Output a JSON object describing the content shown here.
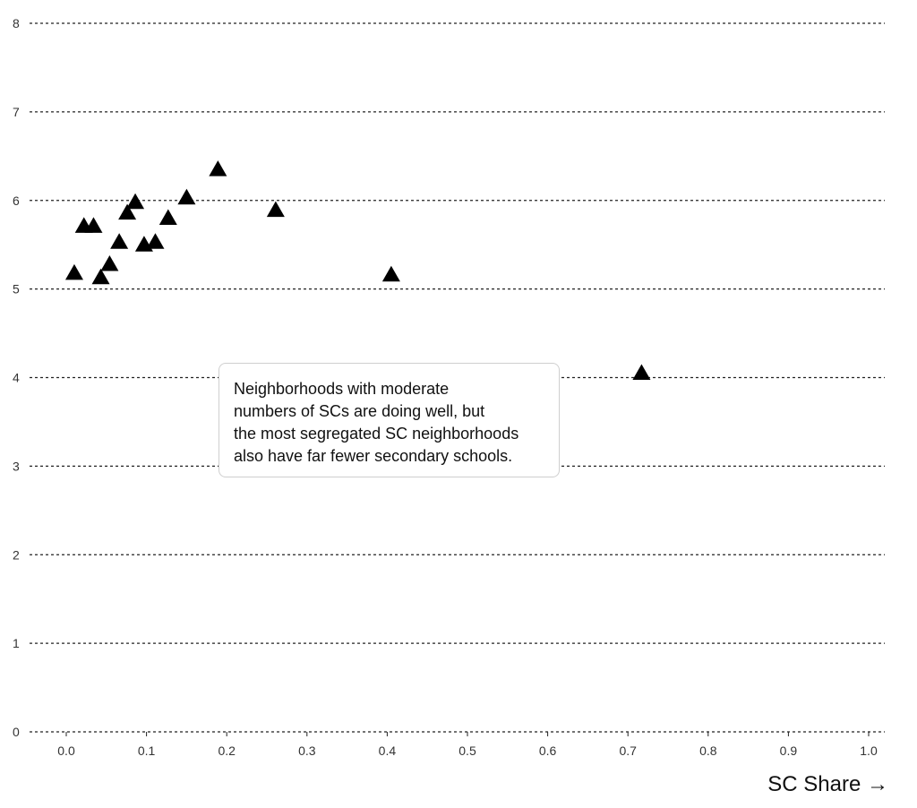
{
  "chart_data": {
    "type": "scatter",
    "title": "",
    "xlabel": "SC Share →",
    "ylabel": "",
    "xlim": [
      0,
      1
    ],
    "ylim": [
      0,
      8
    ],
    "grid": "horizontal dashed",
    "x_ticks": [
      "0.0",
      "0.1",
      "0.2",
      "0.3",
      "0.4",
      "0.5",
      "0.6",
      "0.7",
      "0.8",
      "0.9",
      "1.0"
    ],
    "y_ticks": [
      "0",
      "1",
      "2",
      "3",
      "4",
      "5",
      "6",
      "7",
      "8"
    ],
    "marker": "triangle",
    "marker_color": "#000000",
    "points": [
      {
        "x": 0.01,
        "y": 5.18
      },
      {
        "x": 0.022,
        "y": 5.71
      },
      {
        "x": 0.034,
        "y": 5.71
      },
      {
        "x": 0.043,
        "y": 5.13
      },
      {
        "x": 0.054,
        "y": 5.28
      },
      {
        "x": 0.066,
        "y": 5.53
      },
      {
        "x": 0.076,
        "y": 5.86
      },
      {
        "x": 0.086,
        "y": 5.98
      },
      {
        "x": 0.097,
        "y": 5.5
      },
      {
        "x": 0.111,
        "y": 5.53
      },
      {
        "x": 0.127,
        "y": 5.8
      },
      {
        "x": 0.15,
        "y": 6.03
      },
      {
        "x": 0.189,
        "y": 6.35
      },
      {
        "x": 0.261,
        "y": 5.89
      },
      {
        "x": 0.405,
        "y": 5.16
      },
      {
        "x": 0.717,
        "y": 4.05
      }
    ],
    "annotation": {
      "lines": [
        "Neighborhoods with moderate",
        "numbers of SCs are doing well, but",
        "the most segregated SC neighborhoods",
        "also have far fewer secondary schools."
      ]
    }
  }
}
